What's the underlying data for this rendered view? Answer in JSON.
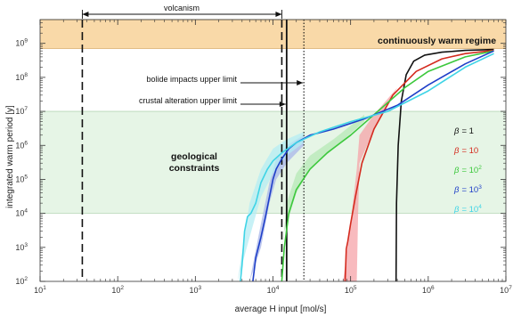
{
  "chart_data": {
    "type": "line",
    "xlabel": "average H input [mol/s]",
    "ylabel": "integrated warm period [y]",
    "xscale": "log",
    "yscale": "log",
    "xlim": [
      10,
      10000000
    ],
    "ylim": [
      100,
      5000000000
    ],
    "x_ticks": [
      {
        "b": "10",
        "e": "1"
      },
      {
        "b": "10",
        "e": "2"
      },
      {
        "b": "10",
        "e": "3"
      },
      {
        "b": "10",
        "e": "4"
      },
      {
        "b": "10",
        "e": "5"
      },
      {
        "b": "10",
        "e": "6"
      },
      {
        "b": "10",
        "e": "7"
      }
    ],
    "y_ticks": [
      {
        "b": "10",
        "e": "2"
      },
      {
        "b": "10",
        "e": "3"
      },
      {
        "b": "10",
        "e": "4"
      },
      {
        "b": "10",
        "e": "5"
      },
      {
        "b": "10",
        "e": "6"
      },
      {
        "b": "10",
        "e": "7"
      },
      {
        "b": "10",
        "e": "8"
      },
      {
        "b": "10",
        "e": "9"
      }
    ],
    "bands": [
      {
        "label": "continuously warm regime",
        "ymin": 700000000,
        "ymax": 5000000000,
        "color": "#f9d9a8",
        "edge": "#d9b47a"
      },
      {
        "label": "geological constraints",
        "ymin": 10000,
        "ymax": 10000000,
        "color": "#e6f5e6",
        "edge": "#b8d8b8"
      }
    ],
    "vlines": [
      {
        "x": 35,
        "style": "dashed"
      },
      {
        "x": 13000,
        "style": "dashed"
      },
      {
        "x": 15000,
        "style": "solid"
      },
      {
        "x": 25000,
        "style": "dotted"
      }
    ],
    "annotations": {
      "volcanism": "volcanism",
      "bolide": "bolide impacts upper limit",
      "crustal": "crustal alteration upper limit"
    },
    "volcanism_range": [
      35,
      13000
    ],
    "bolide_arrow": {
      "x0": 7000,
      "x1": 25000,
      "y": 80000000
    },
    "crustal_arrow": {
      "x0": 7000,
      "x1": 15000,
      "y": 35000000
    },
    "legend_placement": "right",
    "series": [
      {
        "name": "1",
        "color": "#111111",
        "x": [
          385000,
          390000,
          410000,
          450000,
          520000,
          650000,
          900000,
          1500000,
          3000000,
          7000000
        ],
        "y": [
          100,
          20000,
          1000000,
          20000000,
          120000000,
          300000000,
          450000000,
          550000000,
          620000000,
          660000000
        ],
        "band": null
      },
      {
        "name": "10",
        "color": "#d42a1e",
        "x": [
          85000,
          88000,
          92000,
          100000,
          115000,
          140000,
          200000,
          350000,
          700000,
          1500000,
          3000000,
          7000000
        ],
        "y": [
          100,
          900,
          1500,
          5000,
          30000,
          300000,
          3000000,
          30000000,
          150000000,
          350000000,
          500000000,
          620000000
        ],
        "band": {
          "x": [
            80000,
            100000,
            120000,
            130000,
            200000,
            400000
          ],
          "y": [
            100,
            5000,
            200000,
            2000000,
            8000000,
            50000000
          ],
          "x2": [
            400000,
            200000,
            130000,
            125000,
            120000,
            80000
          ],
          "y2": [
            50000000,
            3000000,
            300000,
            10000,
            100,
            100
          ],
          "color": "#f5a3a8"
        }
      },
      {
        "name": "10²",
        "color": "#3cc83c",
        "x": [
          13000,
          14000,
          16000,
          20000,
          30000,
          50000,
          100000,
          200000,
          500000,
          1000000,
          3000000,
          7000000
        ],
        "y": [
          100,
          1000,
          10000,
          50000,
          200000,
          600000,
          2000000,
          8000000,
          50000000,
          150000000,
          400000000,
          600000000
        ],
        "band": {
          "x": [
            12000,
            15000,
            20000,
            30000,
            60000,
            150000
          ],
          "y": [
            100,
            20000,
            150000,
            500000,
            1500000,
            8000000
          ],
          "x2": [
            150000,
            60000,
            30000,
            20000,
            14000,
            12000
          ],
          "y2": [
            5000000,
            800000,
            200000,
            40000,
            3000,
            100
          ],
          "color": "#b6e8b6"
        }
      },
      {
        "name": "10³",
        "color": "#1f3fc8",
        "x": [
          5500,
          6000,
          7000,
          8000,
          9000,
          10000,
          11000,
          13000,
          16000,
          20000,
          30000,
          60000,
          150000,
          400000,
          1000000,
          3000000,
          7000000
        ],
        "y": [
          100,
          500,
          2000,
          8000,
          30000,
          100000,
          200000,
          400000,
          800000,
          1200000,
          2000000,
          3000000,
          6000000,
          15000000,
          60000000,
          250000000,
          600000000
        ],
        "band": {
          "x": [
            5000,
            7000,
            9000,
            11000,
            15000,
            25000
          ],
          "y": [
            100,
            5000,
            80000,
            400000,
            1000000,
            2000000
          ],
          "x2": [
            25000,
            15000,
            11000,
            9000,
            7000,
            5000
          ],
          "y2": [
            1000000,
            300000,
            100000,
            20000,
            1000,
            100
          ],
          "color": "#a8b6ea"
        }
      },
      {
        "name": "10⁴",
        "color": "#3fd4e6",
        "x": [
          3800,
          4000,
          4300,
          4700,
          5200,
          6000,
          7000,
          8500,
          10000,
          13000,
          20000,
          40000,
          100000,
          300000,
          1000000,
          3000000,
          7000000
        ],
        "y": [
          100,
          300,
          3000,
          8000,
          10000,
          20000,
          80000,
          200000,
          350000,
          600000,
          1200000,
          2500000,
          5000000,
          10000000,
          40000000,
          200000000,
          500000000
        ],
        "band": {
          "x": [
            3500,
            5000,
            7000,
            10000,
            15000,
            25000
          ],
          "y": [
            100,
            20000,
            200000,
            800000,
            1500000,
            2500000
          ],
          "x2": [
            25000,
            15000,
            10000,
            7000,
            5000,
            3500
          ],
          "y2": [
            1200000,
            500000,
            150000,
            30000,
            2000,
            100
          ],
          "color": "#b4ecf3"
        }
      }
    ]
  },
  "annotations": {
    "volcanism": "volcanism",
    "bolide": "bolide impacts upper limit",
    "crustal": "crustal alteration upper limit",
    "warm_regime": "continuously warm regime",
    "geo1": "geological",
    "geo2": "constraints"
  },
  "legend": {
    "beta": "β",
    "items": [
      {
        "label": "= 1",
        "color": "#111111"
      },
      {
        "label": "= 10",
        "color": "#d42a1e"
      },
      {
        "label": "= 10",
        "exp": "2",
        "color": "#3cc83c"
      },
      {
        "label": "= 10",
        "exp": "3",
        "color": "#1f3fc8"
      },
      {
        "label": "= 10",
        "exp": "4",
        "color": "#3fd4e6"
      }
    ]
  }
}
